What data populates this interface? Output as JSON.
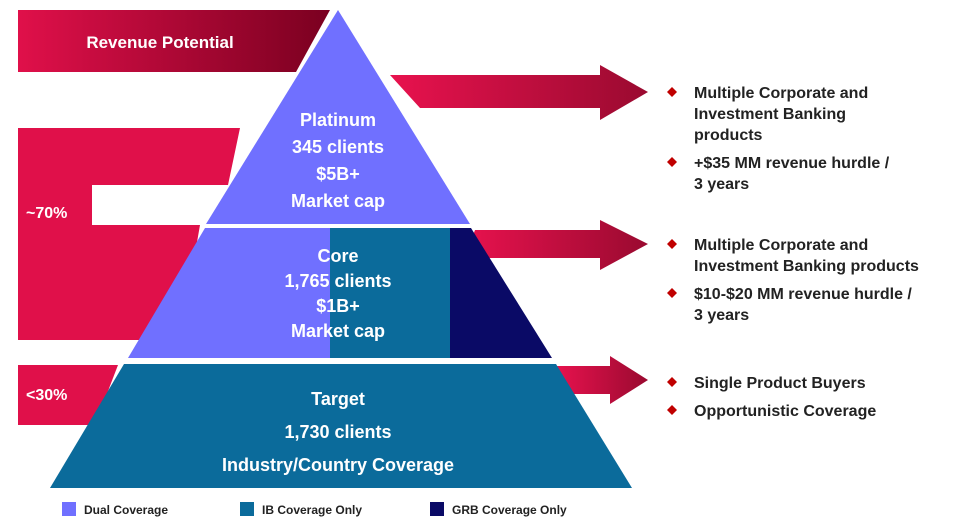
{
  "banner": "Revenue Potential",
  "tiers": [
    {
      "lines": [
        "Platinum",
        "345 clients",
        "$5B+",
        "Market cap"
      ]
    },
    {
      "lines": [
        "Core",
        "1,765 clients",
        "$1B+",
        "Market cap"
      ]
    },
    {
      "lines": [
        "Target",
        "1,730 clients",
        "Industry/Country Coverage"
      ]
    }
  ],
  "shares": [
    "~70%",
    "<30%"
  ],
  "bullets": [
    [
      [
        "Multiple Corporate and",
        "Investment Banking",
        "products"
      ],
      [
        "+$35 MM revenue hurdle /",
        "3 years"
      ]
    ],
    [
      [
        "Multiple Corporate and",
        "Investment Banking products"
      ],
      [
        "$10-$20 MM revenue hurdle /",
        "3 years"
      ]
    ],
    [
      [
        "Single Product Buyers"
      ],
      [
        "Opportunistic Coverage"
      ]
    ]
  ],
  "legend": [
    "Dual Coverage",
    "IB Coverage Only",
    "GRB Coverage Only"
  ]
}
